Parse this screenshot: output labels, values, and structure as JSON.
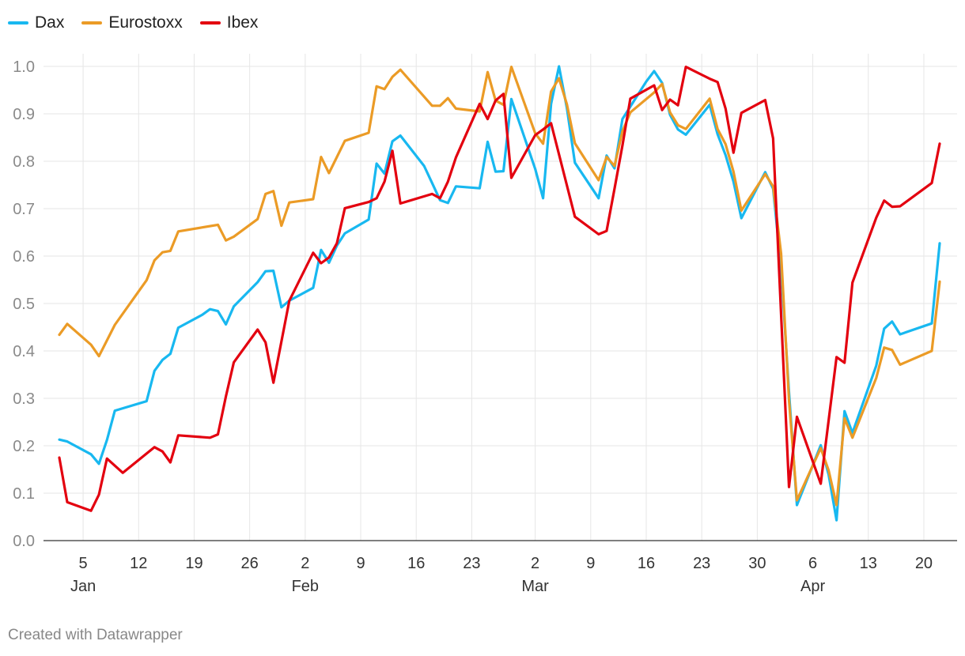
{
  "chart_data": {
    "type": "line",
    "title": "",
    "xlabel": "",
    "ylabel": "",
    "ylim": [
      0,
      1
    ],
    "yticks": [
      "0.0",
      "0.1",
      "0.2",
      "0.3",
      "0.4",
      "0.5",
      "0.6",
      "0.7",
      "0.8",
      "0.9",
      "1.0"
    ],
    "xlim": [
      "2020-01-02",
      "2020-04-22"
    ],
    "xticks": [
      {
        "date": "2020-01-05",
        "label": "5",
        "month": "Jan"
      },
      {
        "date": "2020-01-12",
        "label": "12",
        "month": ""
      },
      {
        "date": "2020-01-19",
        "label": "19",
        "month": ""
      },
      {
        "date": "2020-01-26",
        "label": "26",
        "month": ""
      },
      {
        "date": "2020-02-02",
        "label": "2",
        "month": "Feb"
      },
      {
        "date": "2020-02-09",
        "label": "9",
        "month": ""
      },
      {
        "date": "2020-02-16",
        "label": "16",
        "month": ""
      },
      {
        "date": "2020-02-23",
        "label": "23",
        "month": ""
      },
      {
        "date": "2020-03-02",
        "label": "2",
        "month": "Mar"
      },
      {
        "date": "2020-03-09",
        "label": "9",
        "month": ""
      },
      {
        "date": "2020-03-16",
        "label": "16",
        "month": ""
      },
      {
        "date": "2020-03-23",
        "label": "23",
        "month": ""
      },
      {
        "date": "2020-03-30",
        "label": "30",
        "month": ""
      },
      {
        "date": "2020-04-06",
        "label": "6",
        "month": "Apr"
      },
      {
        "date": "2020-04-13",
        "label": "13",
        "month": ""
      },
      {
        "date": "2020-04-20",
        "label": "20",
        "month": ""
      }
    ],
    "grid": true,
    "legend": "top-left",
    "series": [
      {
        "name": "Dax",
        "color": "#18b8f0",
        "points": [
          [
            "2020-01-02",
            0.213
          ],
          [
            "2020-01-03",
            0.209
          ],
          [
            "2020-01-06",
            0.182
          ],
          [
            "2020-01-07",
            0.162
          ],
          [
            "2020-01-08",
            0.212
          ],
          [
            "2020-01-09",
            0.274
          ],
          [
            "2020-01-10",
            0.279
          ],
          [
            "2020-01-13",
            0.294
          ],
          [
            "2020-01-14",
            0.358
          ],
          [
            "2020-01-15",
            0.381
          ],
          [
            "2020-01-16",
            0.394
          ],
          [
            "2020-01-17",
            0.449
          ],
          [
            "2020-01-20",
            0.476
          ],
          [
            "2020-01-21",
            0.488
          ],
          [
            "2020-01-22",
            0.484
          ],
          [
            "2020-01-23",
            0.456
          ],
          [
            "2020-01-24",
            0.494
          ],
          [
            "2020-01-27",
            0.545
          ],
          [
            "2020-01-28",
            0.568
          ],
          [
            "2020-01-29",
            0.569
          ],
          [
            "2020-01-30",
            0.492
          ],
          [
            "2020-01-31",
            0.506
          ],
          [
            "2020-02-03",
            0.533
          ],
          [
            "2020-02-04",
            0.613
          ],
          [
            "2020-02-05",
            0.586
          ],
          [
            "2020-02-06",
            0.622
          ],
          [
            "2020-02-07",
            0.648
          ],
          [
            "2020-02-10",
            0.677
          ],
          [
            "2020-02-11",
            0.795
          ],
          [
            "2020-02-12",
            0.774
          ],
          [
            "2020-02-13",
            0.842
          ],
          [
            "2020-02-14",
            0.854
          ],
          [
            "2020-02-17",
            0.79
          ],
          [
            "2020-02-18",
            0.754
          ],
          [
            "2020-02-19",
            0.718
          ],
          [
            "2020-02-20",
            0.712
          ],
          [
            "2020-02-21",
            0.747
          ],
          [
            "2020-02-24",
            0.743
          ],
          [
            "2020-02-25",
            0.841
          ],
          [
            "2020-02-26",
            0.778
          ],
          [
            "2020-02-27",
            0.779
          ],
          [
            "2020-02-28",
            0.931
          ],
          [
            "2020-03-02",
            0.784
          ],
          [
            "2020-03-03",
            0.722
          ],
          [
            "2020-03-04",
            0.921
          ],
          [
            "2020-03-05",
            1.0
          ],
          [
            "2020-03-06",
            0.912
          ],
          [
            "2020-03-07",
            0.797
          ],
          [
            "2020-03-10",
            0.722
          ],
          [
            "2020-03-11",
            0.812
          ],
          [
            "2020-03-12",
            0.785
          ],
          [
            "2020-03-13",
            0.889
          ],
          [
            "2020-03-16",
            0.968
          ],
          [
            "2020-03-17",
            0.99
          ],
          [
            "2020-03-18",
            0.965
          ],
          [
            "2020-03-19",
            0.898
          ],
          [
            "2020-03-20",
            0.867
          ],
          [
            "2020-03-21",
            0.856
          ],
          [
            "2020-03-24",
            0.919
          ],
          [
            "2020-03-25",
            0.857
          ],
          [
            "2020-03-26",
            0.813
          ],
          [
            "2020-03-27",
            0.757
          ],
          [
            "2020-03-28",
            0.68
          ],
          [
            "2020-03-31",
            0.777
          ],
          [
            "2020-04-01",
            0.742
          ],
          [
            "2020-04-02",
            0.575
          ],
          [
            "2020-04-03",
            0.313
          ],
          [
            "2020-04-04",
            0.075
          ],
          [
            "2020-04-07",
            0.201
          ],
          [
            "2020-04-08",
            0.139
          ],
          [
            "2020-04-09",
            0.043
          ],
          [
            "2020-04-10",
            0.273
          ],
          [
            "2020-04-11",
            0.227
          ],
          [
            "2020-04-14",
            0.369
          ],
          [
            "2020-04-15",
            0.447
          ],
          [
            "2020-04-16",
            0.462
          ],
          [
            "2020-04-17",
            0.435
          ],
          [
            "2020-04-21",
            0.458
          ],
          [
            "2020-04-22",
            0.627
          ]
        ]
      },
      {
        "name": "Eurostoxx",
        "color": "#eb9b26",
        "points": [
          [
            "2020-01-02",
            0.434
          ],
          [
            "2020-01-03",
            0.457
          ],
          [
            "2020-01-06",
            0.413
          ],
          [
            "2020-01-07",
            0.389
          ],
          [
            "2020-01-09",
            0.455
          ],
          [
            "2020-01-13",
            0.549
          ],
          [
            "2020-01-14",
            0.591
          ],
          [
            "2020-01-15",
            0.608
          ],
          [
            "2020-01-16",
            0.611
          ],
          [
            "2020-01-17",
            0.652
          ],
          [
            "2020-01-22",
            0.666
          ],
          [
            "2020-01-23",
            0.633
          ],
          [
            "2020-01-24",
            0.641
          ],
          [
            "2020-01-27",
            0.678
          ],
          [
            "2020-01-28",
            0.731
          ],
          [
            "2020-01-29",
            0.737
          ],
          [
            "2020-01-30",
            0.664
          ],
          [
            "2020-01-31",
            0.713
          ],
          [
            "2020-02-03",
            0.72
          ],
          [
            "2020-02-04",
            0.809
          ],
          [
            "2020-02-05",
            0.775
          ],
          [
            "2020-02-07",
            0.843
          ],
          [
            "2020-02-10",
            0.86
          ],
          [
            "2020-02-11",
            0.958
          ],
          [
            "2020-02-12",
            0.952
          ],
          [
            "2020-02-13",
            0.978
          ],
          [
            "2020-02-14",
            0.993
          ],
          [
            "2020-02-18",
            0.917
          ],
          [
            "2020-02-19",
            0.917
          ],
          [
            "2020-02-20",
            0.933
          ],
          [
            "2020-02-21",
            0.911
          ],
          [
            "2020-02-24",
            0.905
          ],
          [
            "2020-02-25",
            0.988
          ],
          [
            "2020-02-26",
            0.928
          ],
          [
            "2020-02-27",
            0.919
          ],
          [
            "2020-02-28",
            0.999
          ],
          [
            "2020-03-02",
            0.859
          ],
          [
            "2020-03-03",
            0.837
          ],
          [
            "2020-03-04",
            0.947
          ],
          [
            "2020-03-05",
            0.975
          ],
          [
            "2020-03-06",
            0.92
          ],
          [
            "2020-03-07",
            0.838
          ],
          [
            "2020-03-10",
            0.76
          ],
          [
            "2020-03-11",
            0.809
          ],
          [
            "2020-03-12",
            0.79
          ],
          [
            "2020-03-13",
            0.863
          ],
          [
            "2020-03-14",
            0.903
          ],
          [
            "2020-03-17",
            0.945
          ],
          [
            "2020-03-18",
            0.963
          ],
          [
            "2020-03-19",
            0.903
          ],
          [
            "2020-03-20",
            0.876
          ],
          [
            "2020-03-21",
            0.868
          ],
          [
            "2020-03-24",
            0.932
          ],
          [
            "2020-03-25",
            0.868
          ],
          [
            "2020-03-26",
            0.836
          ],
          [
            "2020-03-27",
            0.778
          ],
          [
            "2020-03-28",
            0.696
          ],
          [
            "2020-03-31",
            0.773
          ],
          [
            "2020-04-01",
            0.747
          ],
          [
            "2020-04-02",
            0.605
          ],
          [
            "2020-04-03",
            0.296
          ],
          [
            "2020-04-04",
            0.085
          ],
          [
            "2020-04-07",
            0.195
          ],
          [
            "2020-04-08",
            0.148
          ],
          [
            "2020-04-09",
            0.075
          ],
          [
            "2020-04-10",
            0.258
          ],
          [
            "2020-04-11",
            0.217
          ],
          [
            "2020-04-14",
            0.343
          ],
          [
            "2020-04-15",
            0.407
          ],
          [
            "2020-04-16",
            0.402
          ],
          [
            "2020-04-17",
            0.371
          ],
          [
            "2020-04-21",
            0.4
          ],
          [
            "2020-04-22",
            0.546
          ]
        ]
      },
      {
        "name": "Ibex",
        "color": "#e3000f",
        "points": [
          [
            "2020-01-02",
            0.175
          ],
          [
            "2020-01-03",
            0.081
          ],
          [
            "2020-01-06",
            0.063
          ],
          [
            "2020-01-07",
            0.097
          ],
          [
            "2020-01-08",
            0.173
          ],
          [
            "2020-01-10",
            0.143
          ],
          [
            "2020-01-14",
            0.197
          ],
          [
            "2020-01-15",
            0.188
          ],
          [
            "2020-01-16",
            0.165
          ],
          [
            "2020-01-17",
            0.222
          ],
          [
            "2020-01-21",
            0.217
          ],
          [
            "2020-01-22",
            0.224
          ],
          [
            "2020-01-23",
            0.304
          ],
          [
            "2020-01-24",
            0.376
          ],
          [
            "2020-01-27",
            0.445
          ],
          [
            "2020-01-28",
            0.418
          ],
          [
            "2020-01-29",
            0.333
          ],
          [
            "2020-01-31",
            0.506
          ],
          [
            "2020-02-03",
            0.607
          ],
          [
            "2020-02-04",
            0.585
          ],
          [
            "2020-02-05",
            0.597
          ],
          [
            "2020-02-06",
            0.627
          ],
          [
            "2020-02-07",
            0.701
          ],
          [
            "2020-02-10",
            0.714
          ],
          [
            "2020-02-11",
            0.722
          ],
          [
            "2020-02-12",
            0.757
          ],
          [
            "2020-02-13",
            0.822
          ],
          [
            "2020-02-14",
            0.711
          ],
          [
            "2020-02-18",
            0.731
          ],
          [
            "2020-02-19",
            0.722
          ],
          [
            "2020-02-20",
            0.757
          ],
          [
            "2020-02-21",
            0.808
          ],
          [
            "2020-02-24",
            0.921
          ],
          [
            "2020-02-25",
            0.889
          ],
          [
            "2020-02-26",
            0.928
          ],
          [
            "2020-02-27",
            0.942
          ],
          [
            "2020-02-28",
            0.765
          ],
          [
            "2020-03-02",
            0.855
          ],
          [
            "2020-03-03",
            0.867
          ],
          [
            "2020-03-04",
            0.88
          ],
          [
            "2020-03-07",
            0.683
          ],
          [
            "2020-03-10",
            0.646
          ],
          [
            "2020-03-11",
            0.653
          ],
          [
            "2020-03-12",
            0.742
          ],
          [
            "2020-03-13",
            0.833
          ],
          [
            "2020-03-14",
            0.932
          ],
          [
            "2020-03-17",
            0.96
          ],
          [
            "2020-03-18",
            0.908
          ],
          [
            "2020-03-19",
            0.93
          ],
          [
            "2020-03-20",
            0.918
          ],
          [
            "2020-03-21",
            0.999
          ],
          [
            "2020-03-24",
            0.974
          ],
          [
            "2020-03-25",
            0.967
          ],
          [
            "2020-03-26",
            0.911
          ],
          [
            "2020-03-27",
            0.818
          ],
          [
            "2020-03-28",
            0.902
          ],
          [
            "2020-03-31",
            0.929
          ],
          [
            "2020-04-01",
            0.848
          ],
          [
            "2020-04-02",
            0.477
          ],
          [
            "2020-04-03",
            0.113
          ],
          [
            "2020-04-04",
            0.261
          ],
          [
            "2020-04-07",
            0.12
          ],
          [
            "2020-04-09",
            0.387
          ],
          [
            "2020-04-10",
            0.375
          ],
          [
            "2020-04-11",
            0.544
          ],
          [
            "2020-04-14",
            0.681
          ],
          [
            "2020-04-15",
            0.717
          ],
          [
            "2020-04-16",
            0.704
          ],
          [
            "2020-04-17",
            0.705
          ],
          [
            "2020-04-21",
            0.754
          ],
          [
            "2020-04-22",
            0.837
          ]
        ]
      }
    ]
  },
  "footer": {
    "credit": "Created with Datawrapper"
  }
}
